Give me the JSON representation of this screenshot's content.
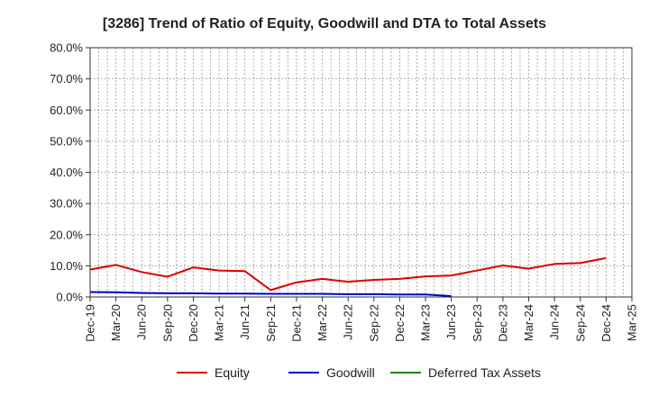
{
  "chart_data": {
    "type": "line",
    "title": "[3286]  Trend of Ratio of Equity, Goodwill and DTA to Total Assets",
    "xlabel": "",
    "ylabel": "",
    "categories": [
      "Dec-19",
      "Mar-20",
      "Jun-20",
      "Sep-20",
      "Dec-20",
      "Mar-21",
      "Jun-21",
      "Sep-21",
      "Dec-21",
      "Mar-22",
      "Jun-22",
      "Sep-22",
      "Dec-22",
      "Mar-23",
      "Jun-23",
      "Sep-23",
      "Dec-23",
      "Mar-24",
      "Jun-24",
      "Sep-24",
      "Dec-24",
      "Mar-25"
    ],
    "ylim": [
      0,
      80
    ],
    "yticks": [
      0,
      10,
      20,
      30,
      40,
      50,
      60,
      70,
      80
    ],
    "ytick_labels": [
      "0.0%",
      "10.0%",
      "20.0%",
      "30.0%",
      "40.0%",
      "50.0%",
      "60.0%",
      "70.0%",
      "80.0%"
    ],
    "grid": true,
    "legend_position": "bottom",
    "series": [
      {
        "name": "Equity",
        "color": "#dd0000",
        "values": [
          8.8,
          10.3,
          8.0,
          6.5,
          9.5,
          8.5,
          8.3,
          2.2,
          4.7,
          5.8,
          4.9,
          5.5,
          5.8,
          6.6,
          6.9,
          8.5,
          10.1,
          9.1,
          10.6,
          10.9,
          12.5,
          null
        ]
      },
      {
        "name": "Goodwill",
        "color": "#0000cc",
        "values": [
          1.6,
          1.5,
          1.3,
          1.2,
          1.2,
          1.1,
          1.1,
          1.0,
          1.0,
          1.0,
          0.9,
          0.9,
          0.8,
          0.8,
          0.3,
          null,
          null,
          null,
          null,
          null,
          null,
          null
        ]
      },
      {
        "name": "Deferred Tax Assets",
        "color": "#008800",
        "values": [
          null,
          null,
          null,
          null,
          null,
          null,
          null,
          null,
          null,
          null,
          null,
          null,
          null,
          null,
          null,
          null,
          null,
          null,
          null,
          null,
          null,
          null
        ]
      }
    ]
  }
}
